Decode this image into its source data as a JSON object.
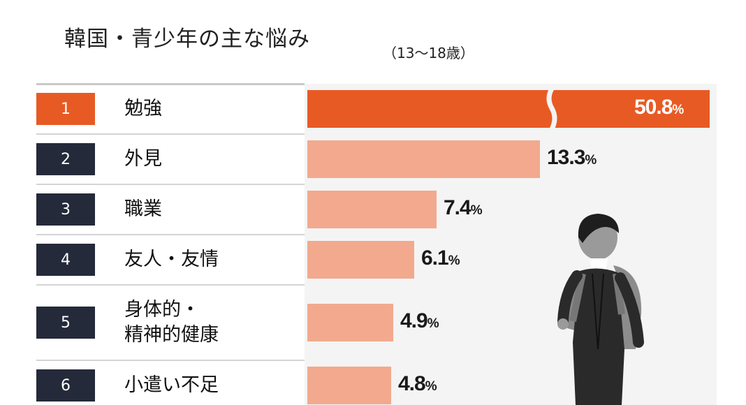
{
  "title": "韓国・青少年の主な悩み",
  "subtitle": "（13〜18歳）",
  "colors": {
    "accent": "#e85a24",
    "bar": "#f2a98e",
    "rank_dark": "#252a3a"
  },
  "chart_data": {
    "type": "bar",
    "orientation": "horizontal",
    "title": "韓国・青少年の主な悩み",
    "subtitle": "（13〜18歳）",
    "unit": "%",
    "axis_break_on_first_bar": true,
    "ranks": [
      "1",
      "2",
      "3",
      "4",
      "5",
      "6"
    ],
    "categories": [
      "勉強",
      "外見",
      "職業",
      "友人・友情",
      "身体的・\n精神的健康",
      "小遣い不足"
    ],
    "values": [
      50.8,
      13.3,
      7.4,
      6.1,
      4.9,
      4.8
    ],
    "value_labels": [
      "50.8",
      "13.3",
      "7.4",
      "6.1",
      "4.9",
      "4.8"
    ]
  }
}
